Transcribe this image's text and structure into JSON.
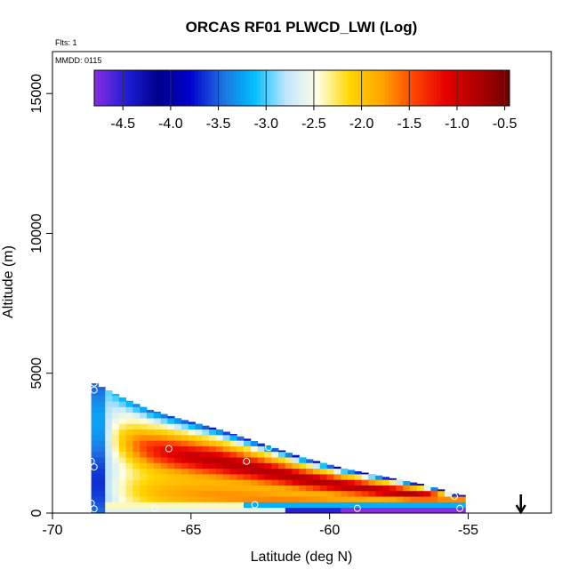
{
  "chart_data": {
    "type": "heatmap",
    "title": "ORCAS RF01 PLWCD_LWI (Log)",
    "flights_note": "Flts: 1",
    "date_note": "MMDD: 0115",
    "xlabel": "Latitude (deg N)",
    "ylabel": "Altitude (m)",
    "xlim": [
      -70,
      -52
    ],
    "ylim": [
      0,
      16500
    ],
    "xticks": [
      -70,
      -65,
      -60,
      -55
    ],
    "yticks": [
      0,
      5000,
      10000,
      15000
    ],
    "colorbar": {
      "range": [
        -4.8,
        -0.45
      ],
      "ticks": [
        -4.5,
        -4.0,
        -3.5,
        -3.0,
        -2.5,
        -2.0,
        -1.5,
        -1.0,
        -0.5
      ],
      "tick_labels": [
        "-4.5",
        "-4.0",
        "-3.5",
        "-3.0",
        "-2.5",
        "-2.0",
        "-1.5",
        "-1.0",
        "-0.5"
      ],
      "colors": [
        "#8a2be2",
        "#1f1fd6",
        "#00008b",
        "#0000cd",
        "#1e6fe0",
        "#00bfff",
        "#bfe6ff",
        "#ffffe0",
        "#ffd700",
        "#ffa500",
        "#ff4500",
        "#e60000",
        "#b00000",
        "#6e0000"
      ]
    },
    "field": {
      "lat_start": -68.6,
      "lat_end": -55.3,
      "lat_step": 0.25,
      "alt_step": 200,
      "top_profile": [
        [
          -68.6,
          4700
        ],
        [
          -68.0,
          4400
        ],
        [
          -67.2,
          4000
        ],
        [
          -66.5,
          3700
        ],
        [
          -65.5,
          3400
        ],
        [
          -64.0,
          3000
        ],
        [
          -62.5,
          2500
        ],
        [
          -61.0,
          2000
        ],
        [
          -59.5,
          1600
        ],
        [
          -58.0,
          1300
        ],
        [
          -56.5,
          1000
        ],
        [
          -55.3,
          650
        ]
      ],
      "description_values": "log10 liquid water content"
    },
    "flight_points": [
      {
        "lat": -68.5,
        "alt": 4650
      },
      {
        "lat": -68.5,
        "alt": 4400
      },
      {
        "lat": -68.6,
        "alt": 1850
      },
      {
        "lat": -68.5,
        "alt": 1650
      },
      {
        "lat": -68.6,
        "alt": 350
      },
      {
        "lat": -68.5,
        "alt": 150
      },
      {
        "lat": -65.8,
        "alt": 2300
      },
      {
        "lat": -63.0,
        "alt": 1850
      },
      {
        "lat": -62.2,
        "alt": 2350
      },
      {
        "lat": -62.7,
        "alt": 300
      },
      {
        "lat": -66.3,
        "alt": 180
      },
      {
        "lat": -59.0,
        "alt": 170
      },
      {
        "lat": -55.5,
        "alt": 600
      },
      {
        "lat": -55.3,
        "alt": 170
      }
    ],
    "arrow": {
      "lat": -53.1,
      "direction": "down"
    }
  }
}
